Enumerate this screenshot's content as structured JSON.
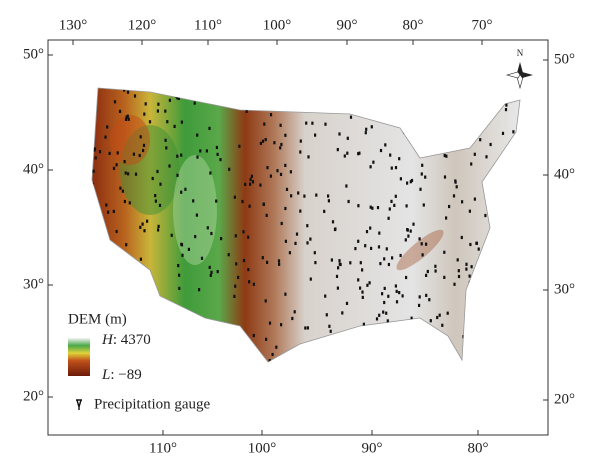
{
  "map": {
    "top_axis": [
      "130°",
      "120°",
      "110°",
      "100°",
      "90°",
      "80°",
      "70°"
    ],
    "bottom_axis": [
      "110°",
      "100°",
      "90°",
      "80°"
    ],
    "left_axis": [
      "50°",
      "40°",
      "30°",
      "20°"
    ],
    "right_axis": [
      "50°",
      "40°",
      "30°",
      "20°"
    ],
    "north": "N",
    "legend": {
      "title": "DEM (m)",
      "high": {
        "symbol": "H",
        "value": ": 4370"
      },
      "low": {
        "symbol": "L",
        "value": ": −89"
      },
      "gauge": "Precipitation gauge"
    }
  }
}
